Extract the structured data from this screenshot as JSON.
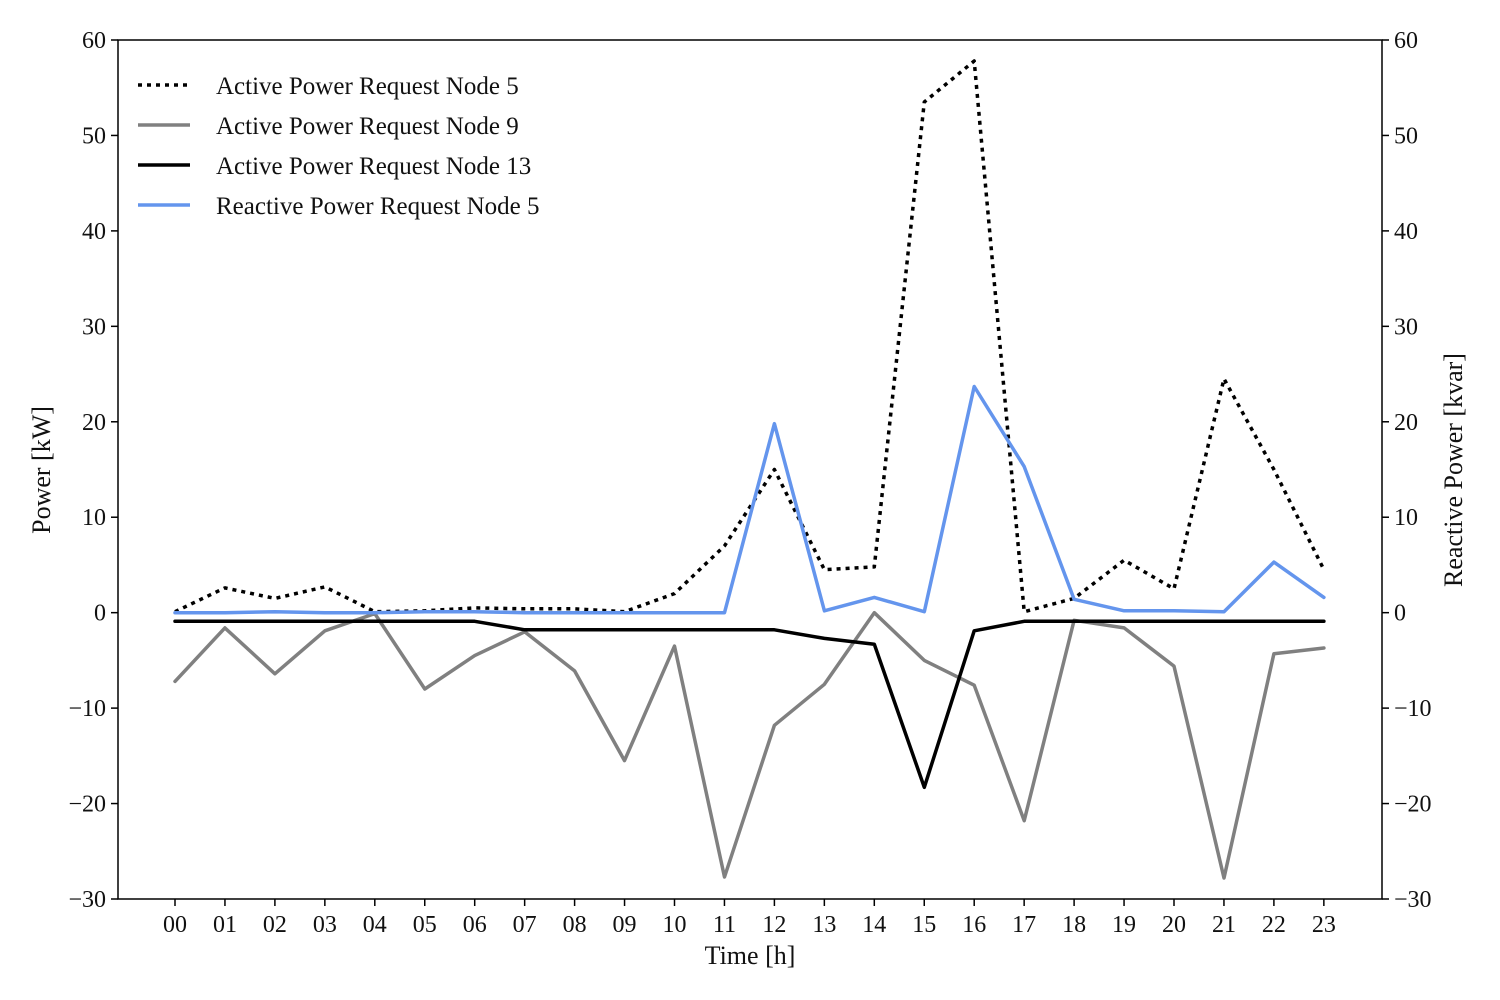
{
  "chart_data": {
    "type": "line",
    "xlabel": "Time [h]",
    "ylabel_left": "Power [kW]",
    "ylabel_right": "Reactive Power [kvar]",
    "categories": [
      "00",
      "01",
      "02",
      "03",
      "04",
      "05",
      "06",
      "07",
      "08",
      "09",
      "10",
      "11",
      "12",
      "13",
      "14",
      "15",
      "16",
      "17",
      "18",
      "19",
      "20",
      "21",
      "22",
      "23"
    ],
    "ylim_left": [
      -30,
      60
    ],
    "ylim_right": [
      -30,
      60
    ],
    "yticks": [
      -30,
      -20,
      -10,
      0,
      10,
      20,
      30,
      40,
      50,
      60
    ],
    "ytick_labels": [
      "−30",
      "−20",
      "−10",
      "0",
      "10",
      "20",
      "30",
      "40",
      "50",
      "60"
    ],
    "grid": false,
    "legend_position": "top-left",
    "series": [
      {
        "name": "Active Power Request Node 5",
        "axis": "left",
        "color": "#000000",
        "style": "dotted",
        "values": [
          0.1,
          2.6,
          1.5,
          2.7,
          0.1,
          0.2,
          0.5,
          0.4,
          0.4,
          0.1,
          2.0,
          7.0,
          15.0,
          4.5,
          4.8,
          53.5,
          57.8,
          0.1,
          1.5,
          5.5,
          2.5,
          24.5,
          15.0,
          4.5
        ]
      },
      {
        "name": "Active Power Request Node 9",
        "axis": "left",
        "color": "#808080",
        "style": "solid",
        "values": [
          -7.2,
          -1.6,
          -6.4,
          -1.9,
          -0.1,
          -8.0,
          -4.5,
          -2.0,
          -6.1,
          -15.5,
          -3.5,
          -27.7,
          -11.8,
          -7.5,
          0.0,
          -5.0,
          -7.6,
          -21.8,
          -0.8,
          -1.6,
          -5.6,
          -27.8,
          -4.3,
          -3.7
        ]
      },
      {
        "name": "Active Power Request Node 13",
        "axis": "left",
        "color": "#000000",
        "style": "solid",
        "values": [
          -0.9,
          -0.9,
          -0.9,
          -0.9,
          -0.9,
          -0.9,
          -0.9,
          -1.8,
          -1.8,
          -1.8,
          -1.8,
          -1.8,
          -1.8,
          -2.7,
          -3.3,
          -18.3,
          -1.9,
          -0.9,
          -0.9,
          -0.9,
          -0.9,
          -0.9,
          -0.9,
          -0.9
        ]
      },
      {
        "name": "Reactive Power Request Node 5",
        "axis": "right",
        "color": "#6495ED",
        "style": "solid",
        "values": [
          0.0,
          0.0,
          0.1,
          0.0,
          0.0,
          0.1,
          0.1,
          0.0,
          0.0,
          0.0,
          0.0,
          0.0,
          19.8,
          0.2,
          1.6,
          0.1,
          23.7,
          15.3,
          1.4,
          0.2,
          0.2,
          0.1,
          5.3,
          1.6
        ]
      }
    ]
  }
}
